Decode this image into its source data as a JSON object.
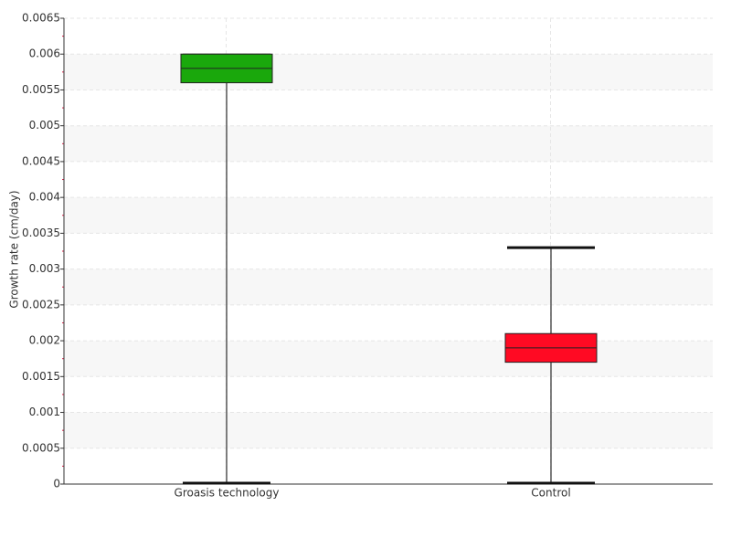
{
  "chart_data": {
    "type": "box",
    "y_label": "Growth rate (cm/day)",
    "categories": [
      "Groasis technology",
      "Control"
    ],
    "boxes": [
      {
        "min": 0,
        "q1": 0.0056,
        "median": 0.0058,
        "q3": 0.006,
        "max": 0.006,
        "color": "#1aa80c"
      },
      {
        "min": 0,
        "q1": 0.0017,
        "median": 0.0019,
        "q3": 0.0021,
        "max": 0.0033,
        "color": "#ff0a23"
      }
    ],
    "ylim": [
      0,
      0.0065
    ],
    "yticks": [
      0,
      0.0005,
      0.001,
      0.0015,
      0.002,
      0.0025,
      0.003,
      0.0035,
      0.004,
      0.0045,
      0.005,
      0.0055,
      0.006,
      0.0065
    ],
    "grid": true
  }
}
